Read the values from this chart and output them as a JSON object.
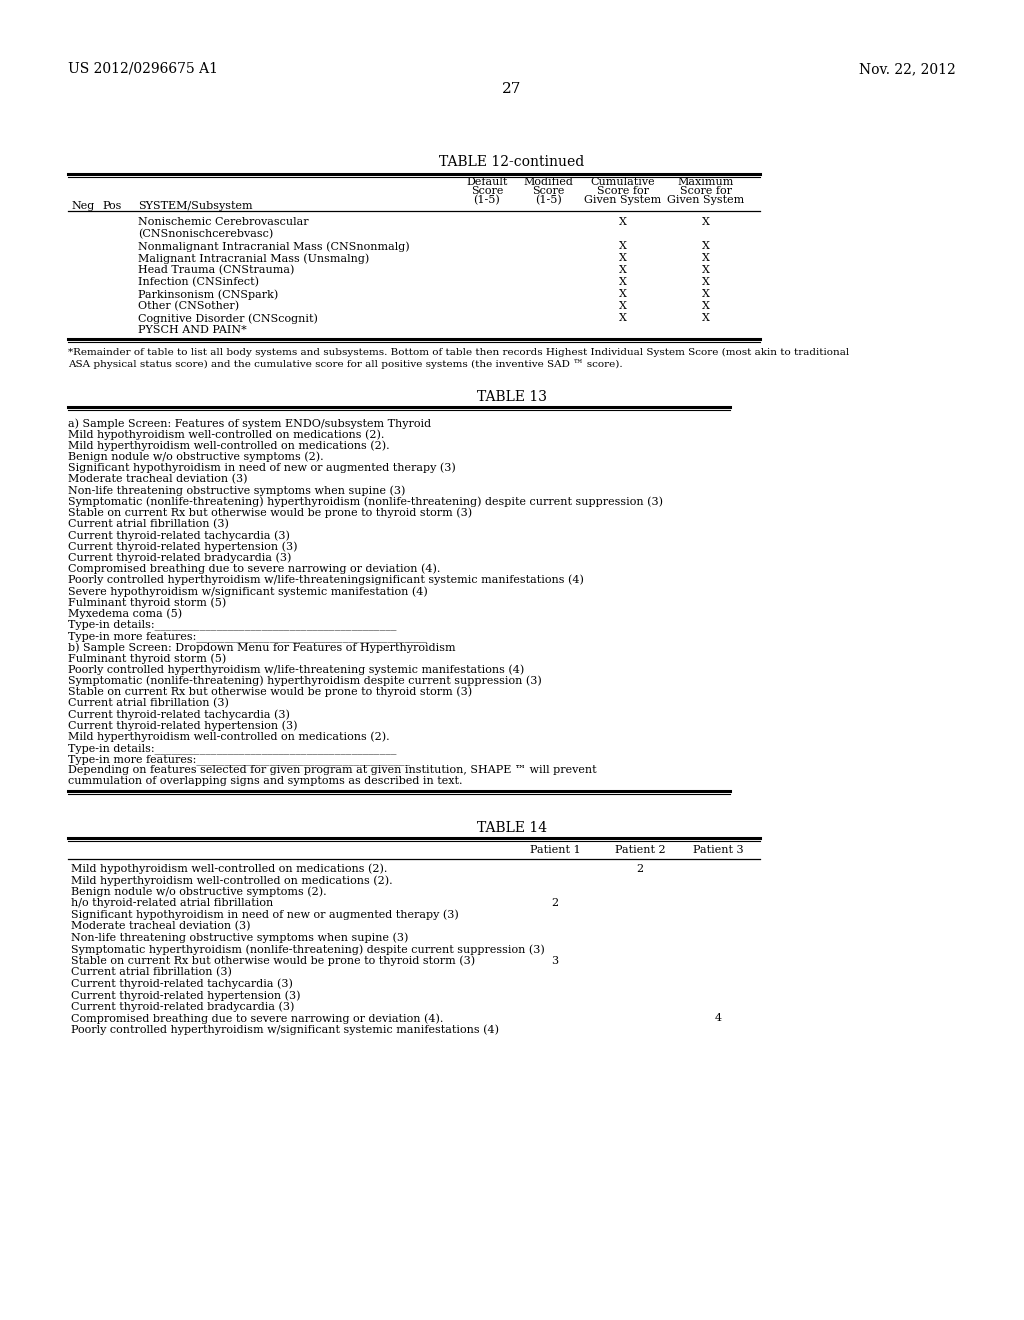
{
  "bg_color": "#ffffff",
  "header_left": "US 2012/0296675 A1",
  "header_right": "Nov. 22, 2012",
  "page_number": "27",
  "table12_title": "TABLE 12-continued",
  "table12_footnote": "*Remainder of table to list all body systems and subsystems. Bottom of table then records Highest Individual System Score (most akin to traditional\nASA physical status score) and the cumulative score for all positive systems (the inventive SAD ™ score).",
  "table12_row_texts": [
    [
      "Nonischemic Cerebrovascular",
      "X",
      "X"
    ],
    [
      "(CNSnonischcerebvasc)",
      "",
      ""
    ],
    [
      "Nonmalignant Intracranial Mass (CNSnonmalg)",
      "X",
      "X"
    ],
    [
      "Malignant Intracranial Mass (Unsmalng)",
      "X",
      "X"
    ],
    [
      "Head Trauma (CNStrauma)",
      "X",
      "X"
    ],
    [
      "Infection (CNSinfect)",
      "X",
      "X"
    ],
    [
      "Parkinsonism (CNSpark)",
      "X",
      "X"
    ],
    [
      "Other (CNSother)",
      "X",
      "X"
    ],
    [
      "Cognitive Disorder (CNScognit)",
      "X",
      "X"
    ],
    [
      "PYSCH AND PAIN*",
      "",
      ""
    ]
  ],
  "table13_title": "TABLE 13",
  "table13_lines": [
    "a) Sample Screen: Features of system ENDO/subsystem Thyroid",
    "Mild hypothyroidism well-controlled on medications (2).",
    "Mild hyperthyroidism well-controlled on medications (2).",
    "Benign nodule w/o obstructive symptoms (2).",
    "Significant hypothyroidism in need of new or augmented therapy (3)",
    "Moderate tracheal deviation (3)",
    "Non-life threatening obstructive symptoms when supine (3)",
    "Symptomatic (nonlife-threatening) hyperthyroidism (nonlife-threatening) despite current suppression (3)",
    "Stable on current Rx but otherwise would be prone to thyroid storm (3)",
    "Current atrial fibrillation (3)",
    "Current thyroid-related tachycardia (3)",
    "Current thyroid-related hypertension (3)",
    "Current thyroid-related bradycardia (3)",
    "Compromised breathing due to severe narrowing or deviation (4).",
    "Poorly controlled hyperthyroidism w/life-threateningsignificant systemic manifestations (4)",
    "Severe hypothyroidism w/significant systemic manifestation (4)",
    "Fulminant thyroid storm (5)",
    "Myxedema coma (5)",
    "Type-in details:___________________________________________",
    "Type-in more features:_________________________________________",
    "b) Sample Screen: Dropdown Menu for Features of Hyperthyroidism",
    "Fulminant thyroid storm (5)",
    "Poorly controlled hyperthyroidism w/life-threatening systemic manifestations (4)",
    "Symptomatic (nonlife-threatening) hyperthyroidism despite current suppression (3)",
    "Stable on current Rx but otherwise would be prone to thyroid storm (3)",
    "Current atrial fibrillation (3)",
    "Current thyroid-related tachycardia (3)",
    "Current thyroid-related hypertension (3)",
    "Mild hyperthyroidism well-controlled on medications (2).",
    "Type-in details:___________________________________________",
    "Type-in more features:______________________________________",
    "Depending on features selected for given program at given institution, SHAPE ™ will prevent",
    "cummulation of overlapping signs and symptoms as described in text."
  ],
  "table14_title": "TABLE 14",
  "table14_rows": [
    [
      "Mild hypothyroidism well-controlled on medications (2).",
      "",
      "2",
      ""
    ],
    [
      "Mild hyperthyroidism well-controlled on medications (2).",
      "",
      "",
      ""
    ],
    [
      "Benign nodule w/o obstructive symptoms (2).",
      "",
      "",
      ""
    ],
    [
      "h/o thyroid-related atrial fibrillation",
      "2",
      "",
      ""
    ],
    [
      "Significant hypothyroidism in need of new or augmented therapy (3)",
      "",
      "",
      ""
    ],
    [
      "Moderate tracheal deviation (3)",
      "",
      "",
      ""
    ],
    [
      "Non-life threatening obstructive symptoms when supine (3)",
      "",
      "",
      ""
    ],
    [
      "Symptomatic hyperthyroidism (nonlife-threatening) despite current suppression (3)",
      "",
      "",
      ""
    ],
    [
      "Stable on current Rx but otherwise would be prone to thyroid storm (3)",
      "3",
      "",
      ""
    ],
    [
      "Current atrial fibrillation (3)",
      "",
      "",
      ""
    ],
    [
      "Current thyroid-related tachycardia (3)",
      "",
      "",
      ""
    ],
    [
      "Current thyroid-related hypertension (3)",
      "",
      "",
      ""
    ],
    [
      "Current thyroid-related bradycardia (3)",
      "",
      "",
      ""
    ],
    [
      "Compromised breathing due to severe narrowing or deviation (4).",
      "",
      "",
      "4"
    ],
    [
      "Poorly controlled hyperthyroidism w/significant systemic manifestations (4)",
      "",
      "",
      ""
    ]
  ]
}
